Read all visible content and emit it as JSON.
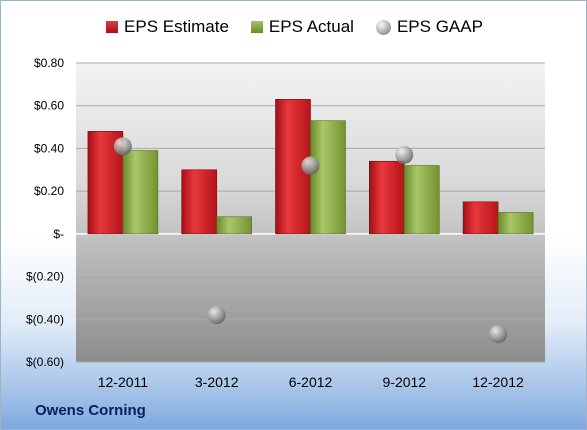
{
  "chart_data": {
    "type": "bar",
    "categories": [
      "12-2011",
      "3-2012",
      "6-2012",
      "9-2012",
      "12-2012"
    ],
    "series": [
      {
        "name": "EPS Estimate",
        "kind": "bar",
        "color": "#c8161d",
        "values": [
          0.48,
          0.3,
          0.63,
          0.34,
          0.15
        ]
      },
      {
        "name": "EPS Actual",
        "kind": "bar",
        "color": "#7f9b3a",
        "values": [
          0.39,
          0.08,
          0.53,
          0.32,
          0.1
        ]
      },
      {
        "name": "EPS GAAP",
        "kind": "marker",
        "color": "#a0a0a0",
        "values": [
          0.41,
          -0.38,
          0.32,
          0.37,
          -0.47
        ]
      }
    ],
    "yticks": [
      0.8,
      0.6,
      0.4,
      0.2,
      0,
      -0.2,
      -0.4,
      -0.6
    ],
    "ytick_labels": [
      "$0.80",
      "$0.60",
      "$0.40",
      "$0.20",
      "$-",
      "$(0.20)",
      "$(0.40)",
      "$(0.60)"
    ],
    "ylim": [
      -0.6,
      0.8
    ],
    "grid": true,
    "legend_position": "top-center"
  },
  "footer": {
    "company": "Owens Corning"
  }
}
